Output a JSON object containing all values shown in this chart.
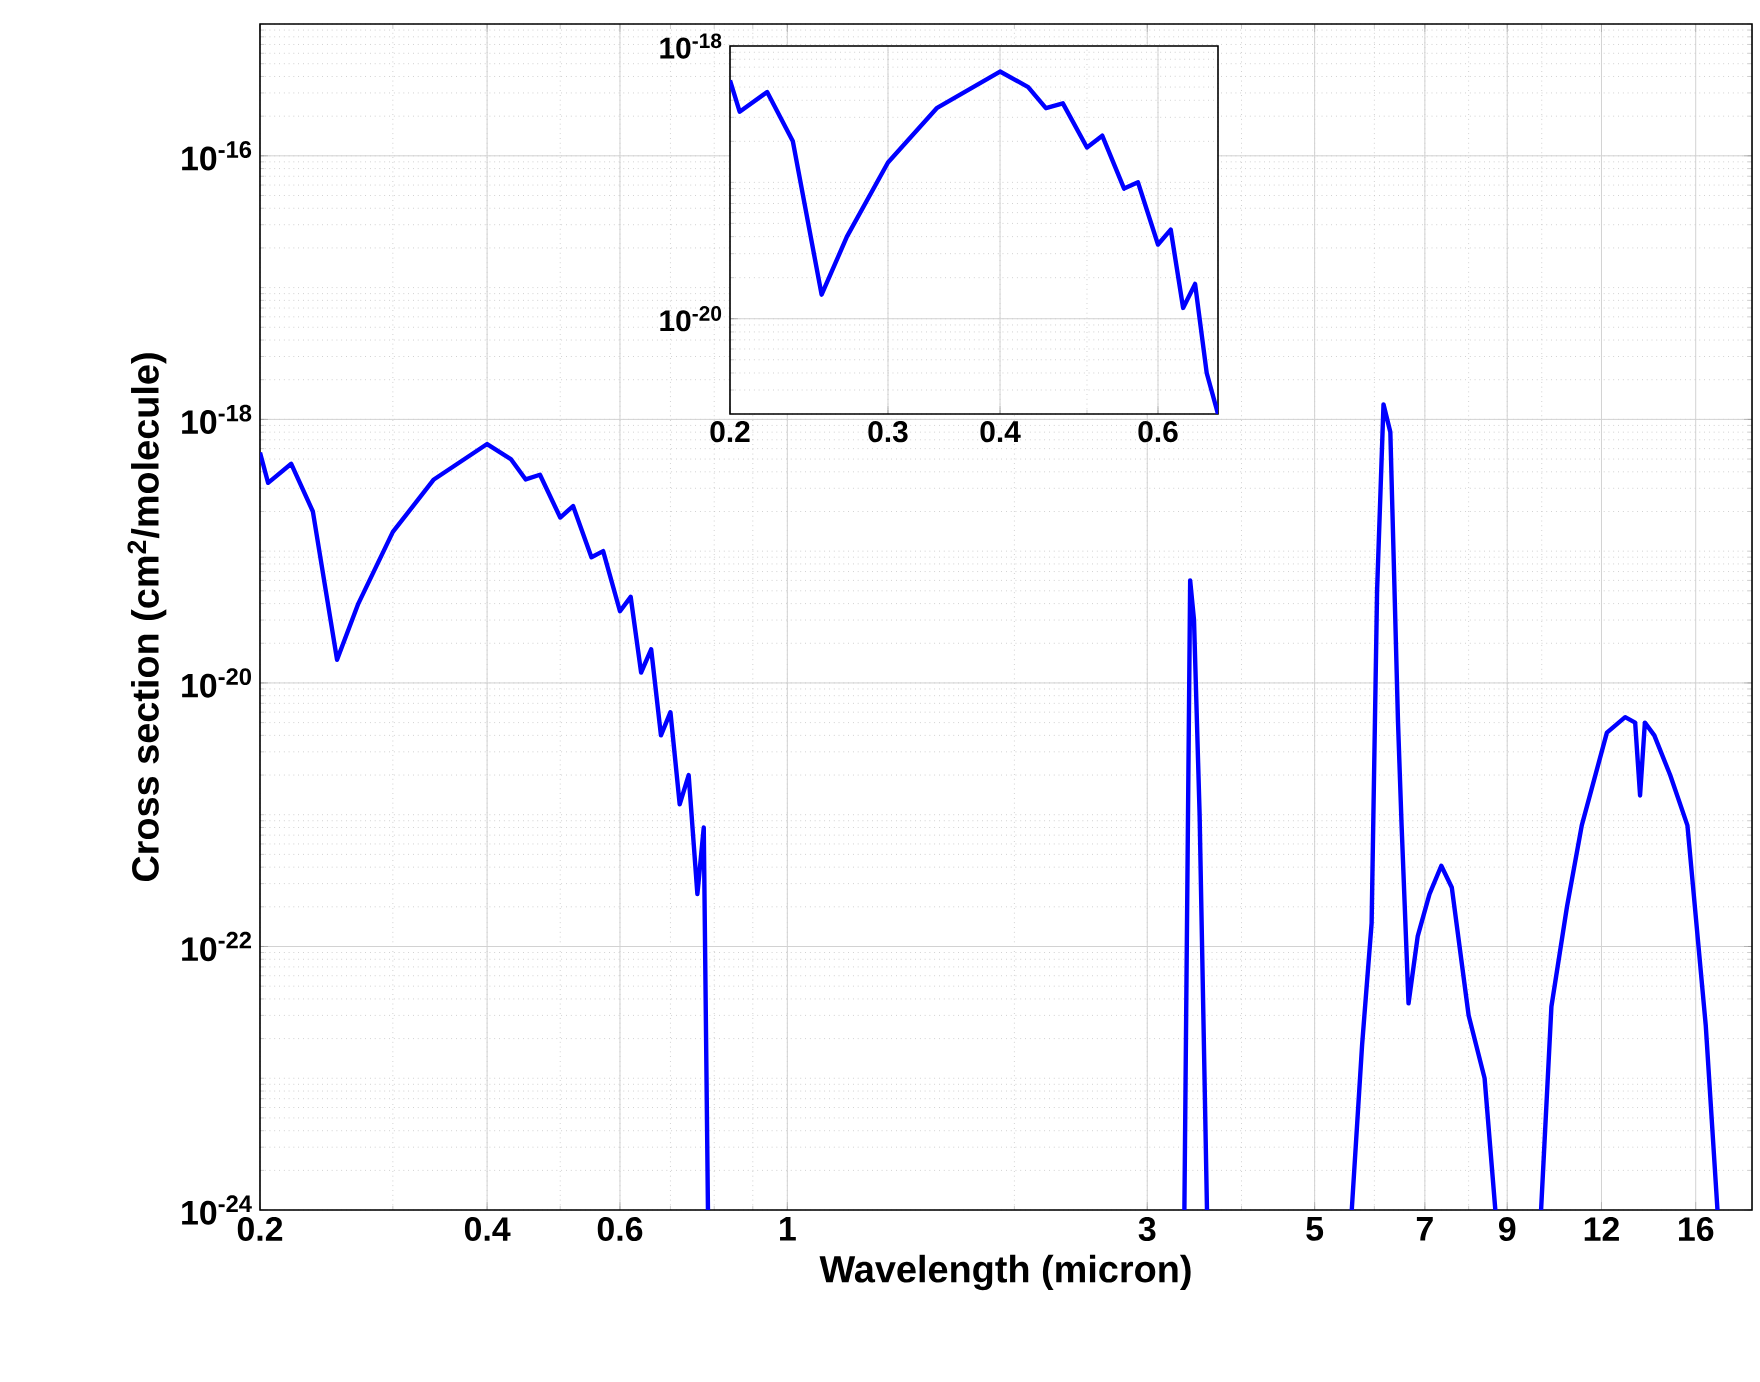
{
  "chart_data": [
    {
      "type": "line",
      "xlabel": "Wavelength (micron)",
      "ylabel": "Cross section (cm$^{2}$/molecule)",
      "log": "xy",
      "grid": true,
      "xlim": [
        0.2,
        19
      ],
      "ylim": [
        1e-24,
        1e-15
      ],
      "xticks": [
        0.2,
        0.4,
        0.6,
        1,
        3,
        5,
        7,
        9,
        12,
        16
      ],
      "yticks": [
        {
          "value": 1e-24,
          "label": "10$^{-24}$"
        },
        {
          "value": 1e-22,
          "label": "10$^{-22}$"
        },
        {
          "value": 1e-20,
          "label": "10$^{-20}$"
        },
        {
          "value": 1e-18,
          "label": "10$^{-18}$"
        },
        {
          "value": 1e-16,
          "label": "10$^{-16}$"
        }
      ],
      "series": [
        {
          "color": "#0000ff",
          "x": [
            0.2,
            0.205,
            0.22,
            0.235,
            0.253,
            0.27,
            0.3,
            0.34,
            0.4,
            0.43,
            0.45,
            0.47,
            0.5,
            0.52,
            0.55,
            0.57,
            0.6,
            0.62,
            0.64,
            0.66,
            0.68,
            0.7,
            0.72,
            0.74,
            0.76,
            0.775,
            0.785,
            1,
            3.36,
            3.42,
            3.46,
            3.52,
            3.6,
            4.5,
            5.6,
            5.78,
            5.95,
            6.05,
            6.17,
            6.3,
            6.45,
            6.52,
            6.66,
            6.85,
            7.1,
            7.36,
            7.6,
            8.0,
            8.4,
            8.68,
            9.5,
            9.98,
            10.3,
            10.8,
            11.3,
            12.2,
            12.9,
            13.3,
            13.5,
            13.7,
            14.1,
            14.8,
            15.6,
            16.5,
            17.1
          ],
          "values": [
            5.6e-19,
            3.3e-19,
            4.6e-19,
            2e-19,
            1.5e-20,
            4e-20,
            1.4e-19,
            3.5e-19,
            6.5e-19,
            5e-19,
            3.5e-19,
            3.8e-19,
            1.8e-19,
            2.2e-19,
            9e-20,
            1e-19,
            3.5e-20,
            4.5e-20,
            1.2e-20,
            1.8e-20,
            4e-21,
            6e-21,
            1.2e-21,
            2e-21,
            2.5e-22,
            8e-22,
            1e-24,
            null,
            1e-24,
            6e-20,
            3e-20,
            1e-21,
            1e-24,
            null,
            1e-24,
            1.8e-23,
            1.5e-22,
            5e-20,
            1.3e-18,
            8e-19,
            5e-21,
            8.3e-22,
            3.7e-23,
            1.2e-22,
            2.5e-22,
            4.1e-22,
            2.8e-22,
            3e-23,
            1e-23,
            1e-24,
            null,
            1e-24,
            3.5e-23,
            2e-22,
            8.3e-22,
            4.2e-21,
            5.5e-21,
            5e-21,
            1.4e-21,
            5e-21,
            4e-21,
            2e-21,
            8.3e-22,
            2.5e-23,
            1e-24
          ]
        }
      ]
    },
    {
      "type": "line",
      "log": "xy",
      "grid": true,
      "xlim": [
        0.2,
        0.7
      ],
      "ylim": [
        2e-21,
        1e-18
      ],
      "xticks": [
        0.2,
        0.3,
        0.4,
        0.6
      ],
      "yticks": [
        {
          "value": 1e-20,
          "label": "10$^{-20}$"
        },
        {
          "value": 1e-18,
          "label": "10$^{-18}$"
        }
      ],
      "series": [
        {
          "color": "#0000ff",
          "x": [
            0.2,
            0.205,
            0.22,
            0.235,
            0.253,
            0.27,
            0.3,
            0.34,
            0.4,
            0.43,
            0.45,
            0.47,
            0.5,
            0.52,
            0.55,
            0.57,
            0.6,
            0.62,
            0.64,
            0.66,
            0.68,
            0.7
          ],
          "values": [
            5.6e-19,
            3.3e-19,
            4.6e-19,
            2e-19,
            1.5e-20,
            4e-20,
            1.4e-19,
            3.5e-19,
            6.5e-19,
            5e-19,
            3.5e-19,
            3.8e-19,
            1.8e-19,
            2.2e-19,
            9e-20,
            1e-19,
            3.5e-20,
            4.5e-20,
            1.2e-20,
            1.8e-20,
            4e-21,
            2e-21
          ]
        }
      ]
    }
  ]
}
